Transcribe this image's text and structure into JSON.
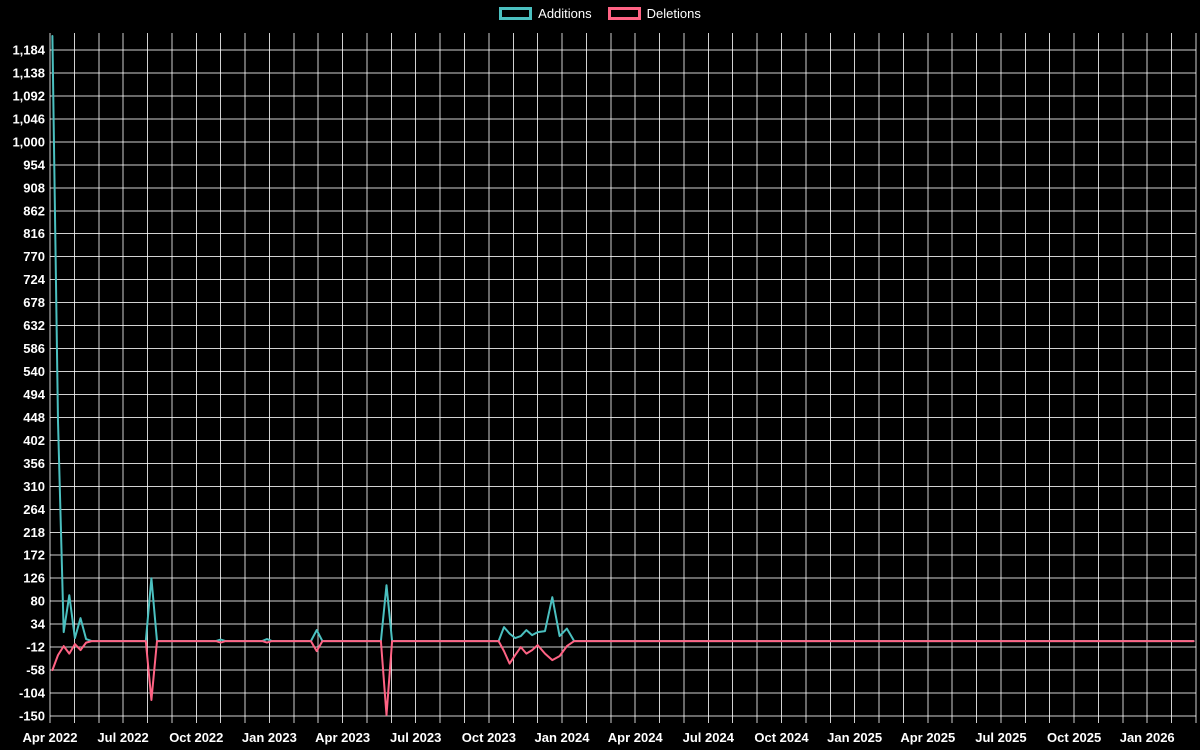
{
  "chart_data": {
    "type": "line",
    "title": "",
    "background": "#000000",
    "grid_color": "#ffffff",
    "legend_position": "top-center",
    "legend": [
      "Additions",
      "Deletions"
    ],
    "y_axis": {
      "ticks": [
        1184,
        1138,
        1092,
        1046,
        1000,
        954,
        908,
        862,
        816,
        770,
        724,
        678,
        632,
        586,
        540,
        494,
        448,
        402,
        356,
        310,
        264,
        218,
        172,
        126,
        80,
        34,
        -12,
        -58,
        -104,
        -150
      ],
      "min": -150,
      "max": 1184,
      "step": 46
    },
    "x_axis": {
      "labels": [
        "Apr 2022",
        "Jul 2022",
        "Oct 2022",
        "Jan 2023",
        "Apr 2023",
        "Jul 2023",
        "Oct 2023",
        "Jan 2024",
        "Apr 2024",
        "Jul 2024",
        "Oct 2024",
        "Jan 2025",
        "Apr 2025",
        "Jul 2025",
        "Oct 2025",
        "Jan 2026"
      ],
      "label_every_months": 3,
      "months_total": 47,
      "x_unit_note": "series point x = fractional months after Apr 2022"
    },
    "series": [
      {
        "name": "Additions",
        "color": "#4bc0c0",
        "points": [
          [
            0.1,
            1212
          ],
          [
            0.33,
            440
          ],
          [
            0.56,
            18
          ],
          [
            0.79,
            92
          ],
          [
            1.02,
            6
          ],
          [
            1.25,
            46
          ],
          [
            1.48,
            4
          ],
          [
            1.71,
            0
          ],
          [
            3.93,
            0
          ],
          [
            4.16,
            126
          ],
          [
            4.39,
            0
          ],
          [
            6.8,
            0
          ],
          [
            7.0,
            3
          ],
          [
            7.2,
            0
          ],
          [
            8.7,
            0
          ],
          [
            8.9,
            4
          ],
          [
            9.1,
            0
          ],
          [
            10.7,
            0
          ],
          [
            10.94,
            22
          ],
          [
            11.17,
            0
          ],
          [
            13.57,
            0
          ],
          [
            13.8,
            112
          ],
          [
            14.03,
            0
          ],
          [
            18.4,
            0
          ],
          [
            18.62,
            28
          ],
          [
            18.85,
            15
          ],
          [
            19.08,
            6
          ],
          [
            19.31,
            10
          ],
          [
            19.54,
            22
          ],
          [
            19.77,
            12
          ],
          [
            20.0,
            18
          ],
          [
            20.3,
            20
          ],
          [
            20.6,
            88
          ],
          [
            20.9,
            10
          ],
          [
            21.2,
            25
          ],
          [
            21.5,
            0
          ],
          [
            46.9,
            0
          ]
        ]
      },
      {
        "name": "Deletions",
        "color": "#ff6384",
        "points": [
          [
            0.1,
            -58
          ],
          [
            0.33,
            -28
          ],
          [
            0.56,
            -10
          ],
          [
            0.79,
            -25
          ],
          [
            1.02,
            -6
          ],
          [
            1.25,
            -18
          ],
          [
            1.48,
            -3
          ],
          [
            1.71,
            0
          ],
          [
            3.93,
            0
          ],
          [
            4.16,
            -118
          ],
          [
            4.39,
            0
          ],
          [
            6.8,
            0
          ],
          [
            7.0,
            -3
          ],
          [
            7.2,
            0
          ],
          [
            8.7,
            0
          ],
          [
            8.9,
            -3
          ],
          [
            9.1,
            0
          ],
          [
            10.7,
            0
          ],
          [
            10.94,
            -20
          ],
          [
            11.17,
            0
          ],
          [
            13.57,
            0
          ],
          [
            13.8,
            -148
          ],
          [
            14.03,
            0
          ],
          [
            18.4,
            0
          ],
          [
            18.62,
            -20
          ],
          [
            18.85,
            -45
          ],
          [
            19.08,
            -28
          ],
          [
            19.31,
            -12
          ],
          [
            19.54,
            -25
          ],
          [
            19.77,
            -18
          ],
          [
            20.0,
            -8
          ],
          [
            20.3,
            -25
          ],
          [
            20.6,
            -38
          ],
          [
            20.9,
            -30
          ],
          [
            21.2,
            -10
          ],
          [
            21.5,
            0
          ],
          [
            46.9,
            0
          ]
        ]
      }
    ]
  }
}
